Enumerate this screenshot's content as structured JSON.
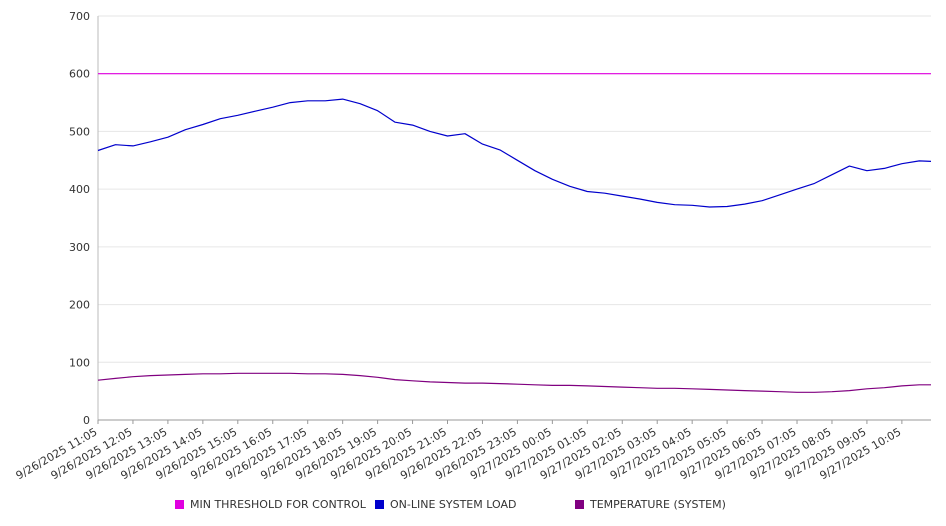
{
  "chart_data": {
    "type": "line",
    "title": "",
    "xlabel": "",
    "ylabel": "",
    "ylim": [
      0,
      700
    ],
    "yticks": [
      0,
      100,
      200,
      300,
      400,
      500,
      600,
      700
    ],
    "grid": true,
    "legend_position": "bottom",
    "x_tick_labels": [
      "9/26/2025 11:05",
      "9/26/2025 12:05",
      "9/26/2025 13:05",
      "9/26/2025 14:05",
      "9/26/2025 15:05",
      "9/26/2025 16:05",
      "9/26/2025 17:05",
      "9/26/2025 18:05",
      "9/26/2025 19:05",
      "9/26/2025 20:05",
      "9/26/2025 21:05",
      "9/26/2025 22:05",
      "9/26/2025 23:05",
      "9/27/2025 00:05",
      "9/27/2025 01:05",
      "9/27/2025 02:05",
      "9/27/2025 03:05",
      "9/27/2025 04:05",
      "9/27/2025 05:05",
      "9/27/2025 06:05",
      "9/27/2025 07:05",
      "9/27/2025 08:05",
      "9/27/2025 09:05",
      "9/27/2025 10:05"
    ],
    "x": [
      "9/26/2025 11:05",
      "9/26/2025 11:35",
      "9/26/2025 12:05",
      "9/26/2025 12:35",
      "9/26/2025 13:05",
      "9/26/2025 13:35",
      "9/26/2025 14:05",
      "9/26/2025 14:35",
      "9/26/2025 15:05",
      "9/26/2025 15:35",
      "9/26/2025 16:05",
      "9/26/2025 16:35",
      "9/26/2025 17:05",
      "9/26/2025 17:35",
      "9/26/2025 18:05",
      "9/26/2025 18:35",
      "9/26/2025 19:05",
      "9/26/2025 19:35",
      "9/26/2025 20:05",
      "9/26/2025 20:35",
      "9/26/2025 21:05",
      "9/26/2025 21:35",
      "9/26/2025 22:05",
      "9/26/2025 22:35",
      "9/26/2025 23:05",
      "9/26/2025 23:35",
      "9/27/2025 00:05",
      "9/27/2025 00:35",
      "9/27/2025 01:05",
      "9/27/2025 01:35",
      "9/27/2025 02:05",
      "9/27/2025 02:35",
      "9/27/2025 03:05",
      "9/27/2025 03:35",
      "9/27/2025 04:05",
      "9/27/2025 04:35",
      "9/27/2025 05:05",
      "9/27/2025 05:35",
      "9/27/2025 06:05",
      "9/27/2025 06:35",
      "9/27/2025 07:05",
      "9/27/2025 07:35",
      "9/27/2025 08:05",
      "9/27/2025 08:35",
      "9/27/2025 09:05",
      "9/27/2025 09:35",
      "9/27/2025 10:05",
      "9/27/2025 10:35",
      "9/27/2025 10:55"
    ],
    "series": [
      {
        "name": "MIN THRESHOLD FOR CONTROL",
        "color": "#e000e0",
        "values": [
          600,
          600,
          600,
          600,
          600,
          600,
          600,
          600,
          600,
          600,
          600,
          600,
          600,
          600,
          600,
          600,
          600,
          600,
          600,
          600,
          600,
          600,
          600,
          600,
          600,
          600,
          600,
          600,
          600,
          600,
          600,
          600,
          600,
          600,
          600,
          600,
          600,
          600,
          600,
          600,
          600,
          600,
          600,
          600,
          600,
          600,
          600,
          600,
          600
        ]
      },
      {
        "name": "ON-LINE SYSTEM LOAD",
        "color": "#0000cc",
        "values": [
          467,
          477,
          475,
          482,
          490,
          503,
          512,
          522,
          528,
          535,
          542,
          550,
          553,
          553,
          556,
          548,
          536,
          516,
          511,
          500,
          492,
          496,
          478,
          468,
          450,
          432,
          417,
          405,
          396,
          393,
          388,
          383,
          377,
          373,
          372,
          369,
          370,
          374,
          380,
          390,
          400,
          410,
          425,
          440,
          432,
          436,
          444,
          449,
          448
        ]
      },
      {
        "name": "TEMPERATURE (SYSTEM)",
        "color": "#800080",
        "values": [
          69,
          72,
          75,
          77,
          78,
          79,
          80,
          80,
          81,
          81,
          81,
          81,
          80,
          80,
          79,
          77,
          74,
          70,
          68,
          66,
          65,
          64,
          64,
          63,
          62,
          61,
          60,
          60,
          59,
          58,
          57,
          56,
          55,
          55,
          54,
          53,
          52,
          51,
          50,
          49,
          48,
          48,
          49,
          51,
          54,
          56,
          59,
          61,
          61
        ]
      }
    ]
  }
}
